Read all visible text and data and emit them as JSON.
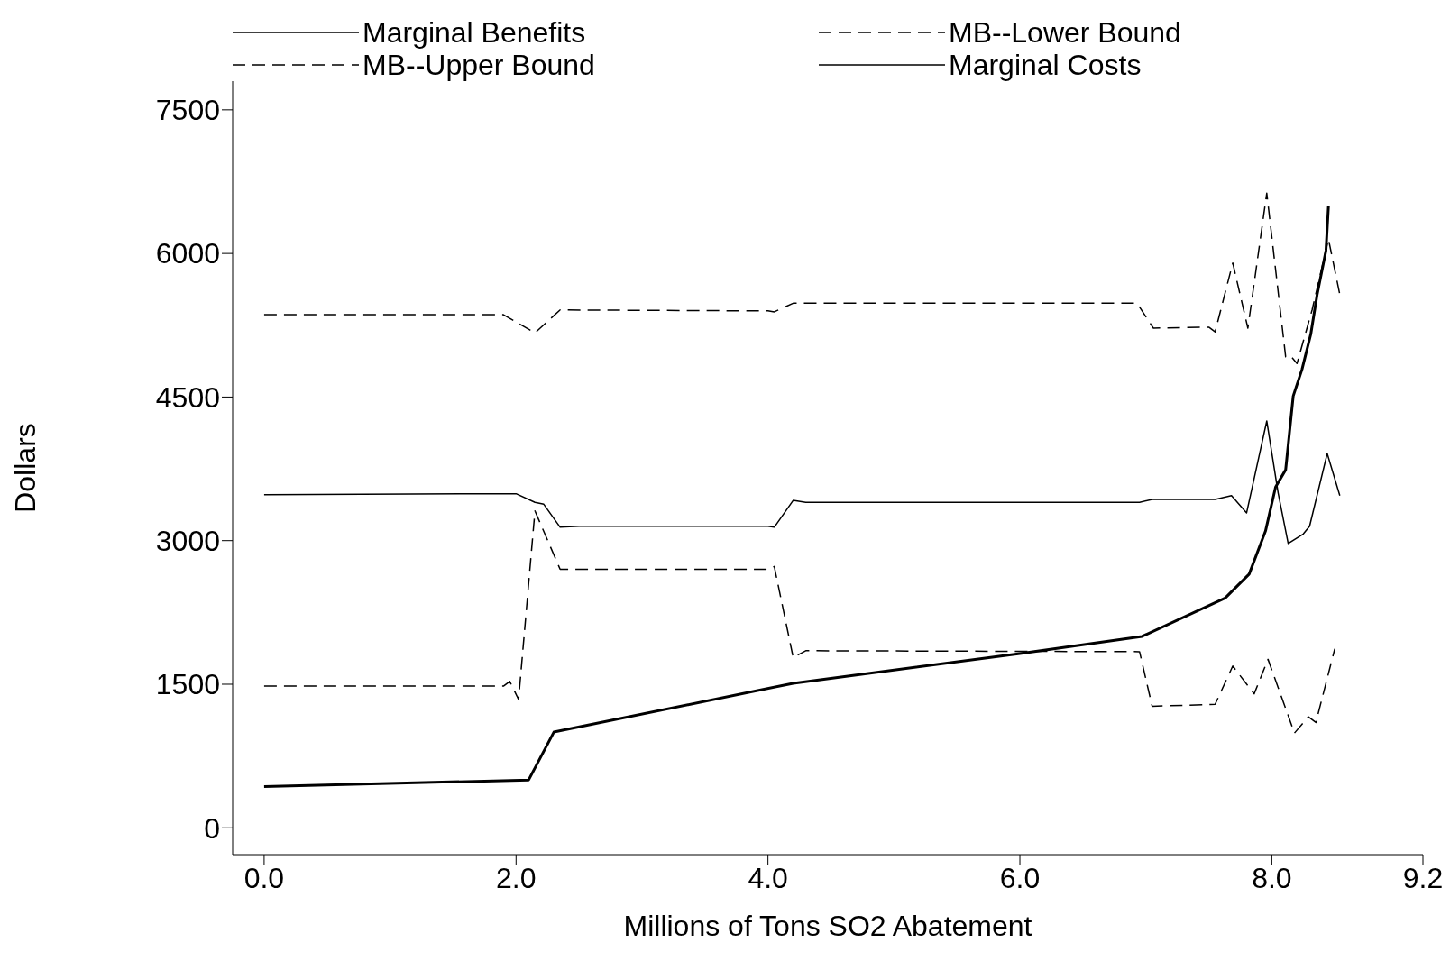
{
  "chart_data": {
    "type": "line",
    "xlabel": "Millions of Tons SO2 Abatement",
    "ylabel": "Dollars",
    "xlim": [
      -0.25,
      9.2
    ],
    "ylim": [
      -280,
      7800
    ],
    "xticks": [
      {
        "value": 0,
        "label": "0.0"
      },
      {
        "value": 2,
        "label": "2.0"
      },
      {
        "value": 4,
        "label": "4.0"
      },
      {
        "value": 6,
        "label": "6.0"
      },
      {
        "value": 8,
        "label": "8.0"
      },
      {
        "value": 9.2,
        "label": "9.2"
      }
    ],
    "yticks": [
      0,
      1500,
      3000,
      4500,
      6000,
      7500
    ],
    "legend": "top",
    "marker": "none",
    "series": [
      {
        "name": "Marginal Benefits",
        "color": "#000000",
        "line_style": "solid",
        "x": [
          0,
          1.9,
          2.0,
          2.15,
          2.22,
          2.35,
          2.5,
          4.0,
          4.05,
          4.2,
          4.3,
          6.95,
          7.05,
          7.55,
          7.68,
          7.8,
          7.96,
          8.05,
          8.13,
          8.25,
          8.3,
          8.44,
          8.54
        ],
        "values": [
          3480,
          3490,
          3490,
          3400,
          3380,
          3140,
          3150,
          3150,
          3140,
          3420,
          3400,
          3400,
          3430,
          3430,
          3470,
          3290,
          4250,
          3500,
          2970,
          3070,
          3150,
          3910,
          3470
        ]
      },
      {
        "name": "MB--Lower Bound",
        "color": "#000000",
        "line_style": "dashed",
        "x": [
          0,
          1.9,
          1.95,
          2.02,
          2.15,
          2.35,
          4.0,
          4.05,
          4.2,
          4.3,
          6.95,
          7.05,
          7.55,
          7.69,
          7.86,
          7.97,
          8.18,
          8.29,
          8.35,
          8.5
        ],
        "values": [
          1480,
          1480,
          1530,
          1340,
          3310,
          2700,
          2700,
          2730,
          1780,
          1850,
          1840,
          1270,
          1290,
          1690,
          1400,
          1760,
          990,
          1160,
          1100,
          1870
        ]
      },
      {
        "name": "MB--Upper Bound",
        "color": "#000000",
        "line_style": "dashed",
        "x": [
          0,
          1.9,
          2.15,
          2.35,
          4.0,
          4.05,
          4.2,
          6.93,
          7.06,
          7.5,
          7.55,
          7.69,
          7.81,
          7.96,
          8.11,
          8.15,
          8.2,
          8.32,
          8.45,
          8.54
        ],
        "values": [
          5360,
          5360,
          5170,
          5410,
          5400,
          5390,
          5480,
          5480,
          5220,
          5230,
          5180,
          5900,
          5220,
          6630,
          4920,
          4930,
          4850,
          5410,
          6150,
          5570
        ]
      },
      {
        "name": "Marginal Costs",
        "color": "#000000",
        "line_style": "solid",
        "x": [
          0,
          2.1,
          2.3,
          4.2,
          6.0,
          6.97,
          7.63,
          7.82,
          7.95,
          8.03,
          8.11,
          8.17,
          8.24,
          8.31,
          8.36,
          8.43,
          8.45
        ],
        "values": [
          430,
          500,
          1000,
          1510,
          1820,
          2000,
          2400,
          2650,
          3100,
          3560,
          3740,
          4510,
          4790,
          5160,
          5570,
          6030,
          6500
        ]
      }
    ]
  }
}
